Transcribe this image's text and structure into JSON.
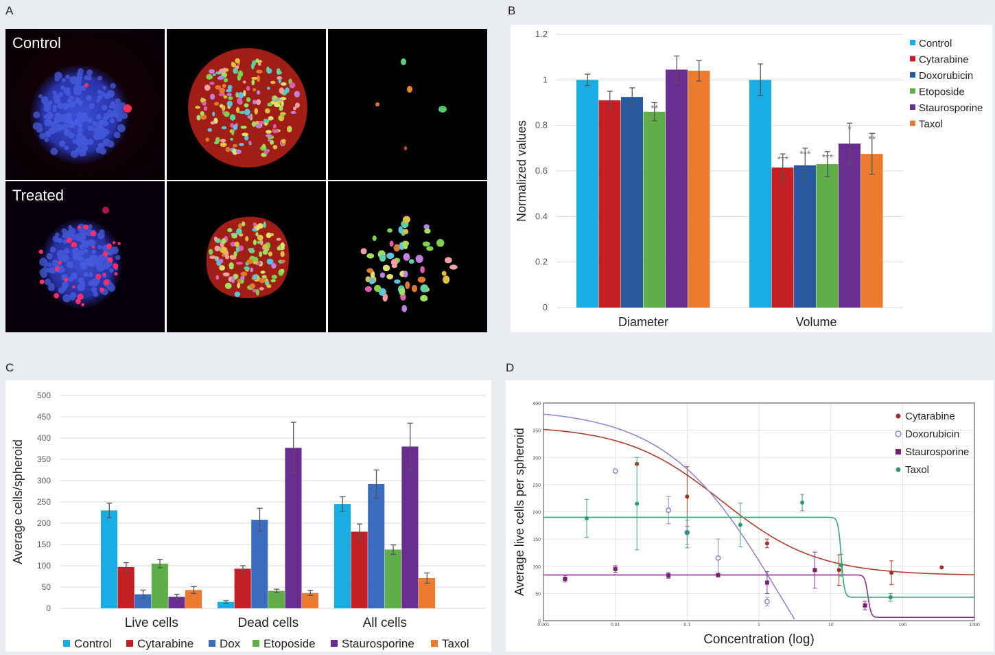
{
  "panels": {
    "a": "A",
    "b": "B",
    "c": "C",
    "d": "D"
  },
  "images": {
    "control_label": "Control",
    "treated_label": "Treated"
  },
  "colors": {
    "Control": "#1aade4",
    "Cytarabine": "#c32026",
    "Doxorubicin": "#2a5aa0",
    "Dox": "#3b6cc0",
    "Etoposide": "#5fae48",
    "Staurosporine": "#6a2d90",
    "Taxol": "#ec7b2f",
    "line_cyt": "#b03a2e",
    "line_dox": "#8f86d6",
    "line_stau": "#8a2e86",
    "line_tax": "#3aa57a"
  },
  "chart_data": [
    {
      "id": "B",
      "type": "bar",
      "title": "",
      "xlabel": "",
      "ylabel": "Normalized values",
      "ylim": [
        0,
        1.2
      ],
      "yticks": [
        "0",
        "0.2",
        "0.4",
        "0.6",
        "0.8",
        "1",
        "1.2"
      ],
      "categories": [
        "Diameter",
        "Volume"
      ],
      "legend_position": "top-right",
      "grid": true,
      "series": [
        {
          "name": "Control",
          "values": [
            1.0,
            1.0
          ],
          "errors": [
            0.025,
            0.07
          ],
          "sig": [
            "",
            ""
          ]
        },
        {
          "name": "Cytarabine",
          "values": [
            0.91,
            0.615
          ],
          "errors": [
            0.04,
            0.06
          ],
          "sig": [
            "",
            "***"
          ]
        },
        {
          "name": "Doxorubicin",
          "values": [
            0.925,
            0.625
          ],
          "errors": [
            0.04,
            0.075
          ],
          "sig": [
            "",
            "***"
          ]
        },
        {
          "name": "Etoposide",
          "values": [
            0.86,
            0.63
          ],
          "errors": [
            0.04,
            0.055
          ],
          "sig": [
            "**",
            "***"
          ]
        },
        {
          "name": "Staurosporine",
          "values": [
            1.045,
            0.72
          ],
          "errors": [
            0.06,
            0.09
          ],
          "sig": [
            "",
            "*"
          ]
        },
        {
          "name": "Taxol",
          "values": [
            1.04,
            0.675
          ],
          "errors": [
            0.045,
            0.09
          ],
          "sig": [
            "",
            "**"
          ]
        }
      ]
    },
    {
      "id": "C",
      "type": "bar",
      "title": "",
      "xlabel": "",
      "ylabel": "Average cells/spheroid",
      "ylim": [
        0,
        500
      ],
      "yticks": [
        "0",
        "50",
        "100",
        "150",
        "200",
        "250",
        "300",
        "350",
        "400",
        "450",
        "500"
      ],
      "categories": [
        "Live cells",
        "Dead cells",
        "All cells"
      ],
      "legend_position": "bottom",
      "grid": true,
      "series": [
        {
          "name": "Control",
          "values": [
            230,
            15,
            245
          ],
          "errors": [
            17,
            3,
            17
          ]
        },
        {
          "name": "Cytarabine",
          "values": [
            97,
            93,
            180
          ],
          "errors": [
            10,
            7,
            18
          ]
        },
        {
          "name": "Dox",
          "values": [
            33,
            208,
            292
          ],
          "errors": [
            10,
            27,
            33
          ]
        },
        {
          "name": "Etoposide",
          "values": [
            105,
            41,
            138
          ],
          "errors": [
            10,
            4,
            11
          ]
        },
        {
          "name": "Staurosporine",
          "values": [
            27,
            377,
            380
          ],
          "errors": [
            6,
            60,
            55
          ]
        },
        {
          "name": "Taxol",
          "values": [
            43,
            36,
            71
          ],
          "errors": [
            8,
            6,
            12
          ]
        }
      ]
    },
    {
      "id": "D",
      "type": "scatter",
      "title": "",
      "xlabel": "Concentration (log)",
      "ylabel": "Average live cells per spheroid",
      "xscale": "log",
      "xlim": [
        0.001,
        1000
      ],
      "ylim": [
        0,
        400
      ],
      "xticks": [
        "0.001",
        "0.01",
        "0.1",
        "1",
        "10",
        "100",
        "1000"
      ],
      "yticks": [
        "0",
        "50",
        "100",
        "150",
        "200",
        "250",
        "300",
        "350",
        "400"
      ],
      "legend_position": "top-right",
      "grid": true,
      "series": [
        {
          "name": "Cytarabine",
          "marker": "filled",
          "points": [
            [
              0.02,
              288,
              0
            ],
            [
              0.1,
              228,
              55
            ],
            [
              1.3,
              142,
              8
            ],
            [
              13,
              93,
              28
            ],
            [
              70,
              88,
              22
            ],
            [
              350,
              98,
              0
            ]
          ],
          "curve": {
            "top": 358,
            "bottom": 83,
            "ec50": 0.3,
            "hill": 0.65
          }
        },
        {
          "name": "Doxorubicin",
          "marker": "open",
          "points": [
            [
              0.01,
              275,
              0
            ],
            [
              0.055,
              203,
              25
            ],
            [
              0.1,
              162,
              22
            ],
            [
              0.27,
              115,
              35
            ],
            [
              1.3,
              35,
              8
            ]
          ],
          "curve": {
            "top": 390,
            "bottom": -300,
            "ec50": 2,
            "hill": 0.55
          }
        },
        {
          "name": "Staurosporine",
          "marker": "filled-square",
          "points": [
            [
              0.002,
              77,
              6
            ],
            [
              0.01,
              95,
              6
            ],
            [
              0.055,
              83,
              5
            ],
            [
              0.27,
              84,
              0
            ],
            [
              1.3,
              70,
              20
            ],
            [
              6,
              93,
              33
            ],
            [
              30,
              28,
              8
            ]
          ],
          "curve": {
            "top": 84,
            "bottom": 6,
            "ec50": 33,
            "hill": 20
          }
        },
        {
          "name": "Taxol",
          "marker": "filled",
          "points": [
            [
              0.004,
              188,
              35
            ],
            [
              0.02,
              215,
              85
            ],
            [
              0.1,
              162,
              28
            ],
            [
              0.55,
              176,
              40
            ],
            [
              4,
              217,
              15
            ],
            [
              14,
              102,
              20
            ],
            [
              68,
              43,
              7
            ]
          ],
          "curve": {
            "top": 190,
            "bottom": 43,
            "ec50": 14,
            "hill": 20
          }
        }
      ]
    }
  ]
}
